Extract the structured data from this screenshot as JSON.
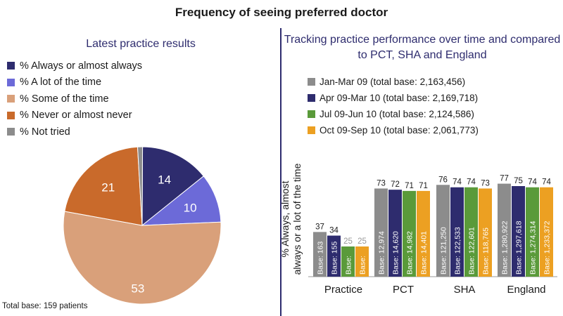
{
  "main_title": "Frequency of seeing preferred doctor",
  "total_base": "Total base: 159 patients",
  "chart_data": [
    {
      "type": "pie",
      "title": "Latest practice results",
      "legend": [
        {
          "label": "% Always or almost always",
          "color": "#2e2c6e"
        },
        {
          "label": "% A lot of the time",
          "color": "#6c6ad8"
        },
        {
          "label": "% Some of the time",
          "color": "#d9a07a"
        },
        {
          "label": "% Never or almost never",
          "color": "#c96a2b"
        },
        {
          "label": "% Not tried",
          "color": "#8c8c8c"
        }
      ],
      "slices": [
        {
          "label": "% Always or almost always",
          "value": 14,
          "display": "14",
          "color": "#2e2c6e"
        },
        {
          "label": "% A lot of the time",
          "value": 10,
          "display": "10",
          "color": "#6c6ad8"
        },
        {
          "label": "% Some of the time",
          "value": 53,
          "display": "53",
          "color": "#d9a07a"
        },
        {
          "label": "% Never or almost never",
          "value": 21,
          "display": "21",
          "color": "#c96a2b"
        },
        {
          "label": "% Not tried",
          "value": 1,
          "display": "",
          "color": "#8c8c8c"
        }
      ]
    },
    {
      "type": "bar",
      "title": "Tracking practice performance over time and compared to PCT, SHA and England",
      "ylabel": "% Always, almost always or a lot of the time",
      "ylim": [
        0,
        100
      ],
      "categories": [
        "Practice",
        "PCT",
        "SHA",
        "England"
      ],
      "series": [
        {
          "name": "Jan-Mar 09 (total base: 2,163,456)",
          "color": "#8c8c8c",
          "values": [
            37,
            73,
            76,
            77
          ],
          "bases": [
            "Base: 163",
            "Base: 12,974",
            "Base: 121,250",
            "Base: 1,280,922"
          ]
        },
        {
          "name": "Apr 09-Mar 10 (total base: 2,169,718)",
          "color": "#2e2c6e",
          "values": [
            34,
            72,
            74,
            75
          ],
          "bases": [
            "Base: 155",
            "Base: 14,620",
            "Base: 122,533",
            "Base: 1,297,618"
          ]
        },
        {
          "name": "Jul 09-Jun 10 (total base: 2,124,586)",
          "color": "#5a9a3a",
          "values": [
            25,
            71,
            74,
            74
          ],
          "bases": [
            "Base:",
            "Base: 14,982",
            "Base: 122,601",
            "Base: 1,274,314"
          ]
        },
        {
          "name": "Oct 09-Sep 10 (total base: 2,061,773)",
          "color": "#eca022",
          "values": [
            25,
            71,
            73,
            74
          ],
          "bases": [
            "Base:",
            "Base: 14,401",
            "Base: 118,765",
            "Base: 1,233,372"
          ]
        }
      ]
    }
  ]
}
